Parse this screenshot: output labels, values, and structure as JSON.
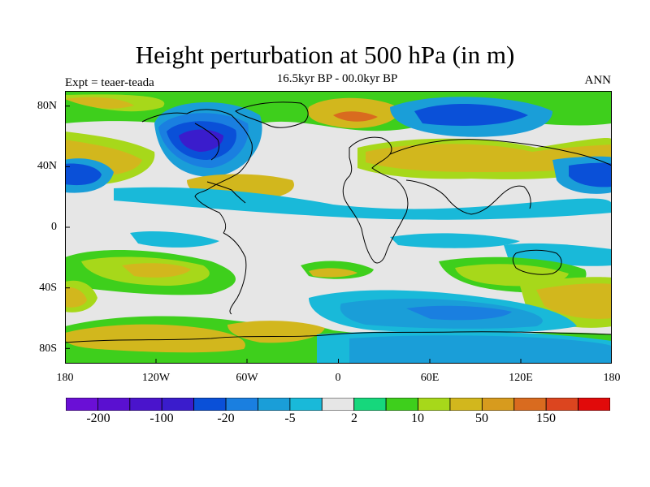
{
  "title": "Height perturbation at 500 hPa (in m)",
  "subtitle": "16.5kyr BP - 00.0kyr BP",
  "experiment": "Expt = teaer-teada",
  "season": "ANN",
  "lat_ticks": [
    "80N",
    "40N",
    "0",
    "40S",
    "80S"
  ],
  "lon_ticks": [
    "180",
    "120W",
    "60W",
    "0",
    "60E",
    "120E",
    "180"
  ],
  "colorbar": {
    "colors": [
      "#6a0fd6",
      "#5a10d0",
      "#4a14cc",
      "#3a1ccc",
      "#0a50d8",
      "#1a7fe0",
      "#1a9ed8",
      "#19b9d9",
      "#e6e6e6",
      "#16d77c",
      "#3ecf1c",
      "#a7d81a",
      "#d2b71d",
      "#d79b1e",
      "#d96b1f",
      "#dc451f",
      "#e10a0a"
    ],
    "labels": [
      "-200",
      "-100",
      "-20",
      "-5",
      "2",
      "10",
      "50",
      "150"
    ]
  }
}
